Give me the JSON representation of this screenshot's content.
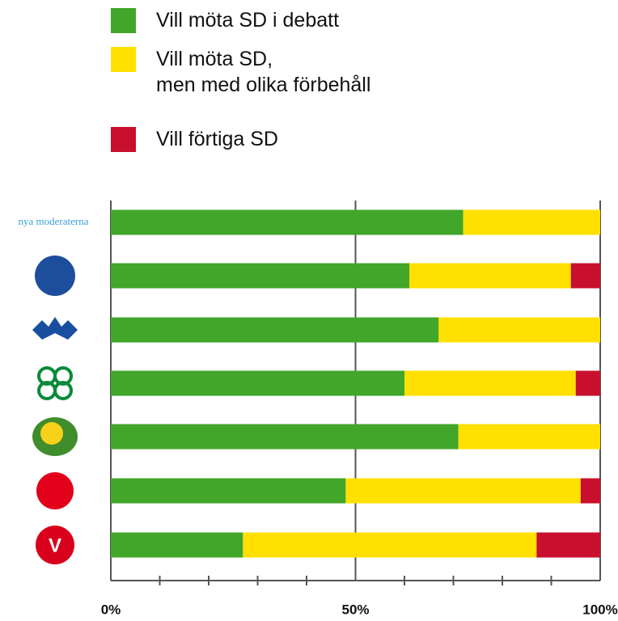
{
  "chart_data": {
    "type": "stacked_barh",
    "categories": [
      "nya moderaterna",
      null,
      null,
      null,
      null,
      null,
      null
    ],
    "series": [
      {
        "name": "Vill möta SD i debatt",
        "color": "#41a62a",
        "values": [
          72,
          61,
          67,
          60,
          71,
          48,
          27
        ]
      },
      {
        "name": "Vill möta SD,\nmen med olika förbehåll",
        "color": "#ffe000",
        "values": [
          28,
          33,
          33,
          35,
          29,
          48,
          60
        ]
      },
      {
        "name": "Vill förtiga SD",
        "color": "#c8102e",
        "values": [
          0,
          6,
          0,
          5,
          0,
          4,
          13
        ]
      }
    ],
    "xlim": [
      0,
      100
    ],
    "xticks": [
      {
        "value": 0,
        "label": "0%"
      },
      {
        "value": 50,
        "label": "50%"
      },
      {
        "value": 100,
        "label": "100%"
      }
    ],
    "xminorticks": [
      10,
      20,
      30,
      40,
      60,
      70,
      80,
      90
    ],
    "grid": true
  }
}
